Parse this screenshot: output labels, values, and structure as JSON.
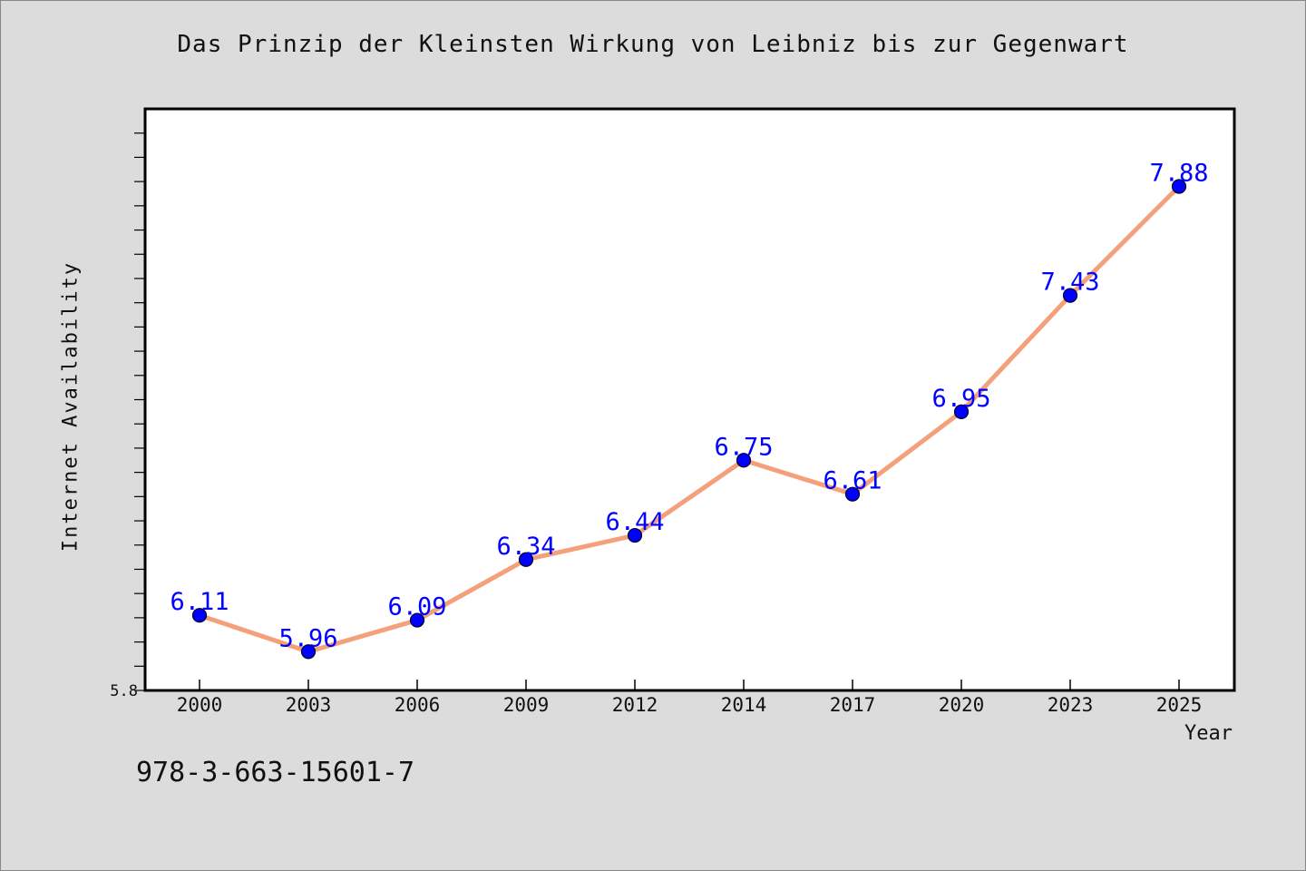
{
  "chart_data": {
    "type": "line",
    "title": "Das Prinzip der Kleinsten Wirkung von Leibniz bis zur Gegenwart",
    "xlabel": "Year",
    "ylabel": "Internet Availability",
    "categories": [
      "2000",
      "2003",
      "2006",
      "2009",
      "2012",
      "2014",
      "2017",
      "2020",
      "2023",
      "2025"
    ],
    "series": [
      {
        "values": [
          6.11,
          5.96,
          6.09,
          6.34,
          6.44,
          6.75,
          6.61,
          6.95,
          7.43,
          7.88
        ],
        "data_labels": [
          "6.11",
          "5.96",
          "6.09",
          "6.34",
          "6.44",
          "6.75",
          "6.61",
          "6.95",
          "7.43",
          "7.88"
        ]
      }
    ],
    "ylim": [
      5.8,
      8.2
    ],
    "y_tick_labels": [
      "5.8"
    ],
    "grid": false,
    "legend": "none",
    "colors": {
      "line": "#f4a07a",
      "marker": "#0000ff",
      "data_label": "#0000ff",
      "background": "#dcdcdc",
      "plot_background": "#ffffff"
    }
  },
  "footer": {
    "isbn": "978-3-663-15601-7"
  }
}
